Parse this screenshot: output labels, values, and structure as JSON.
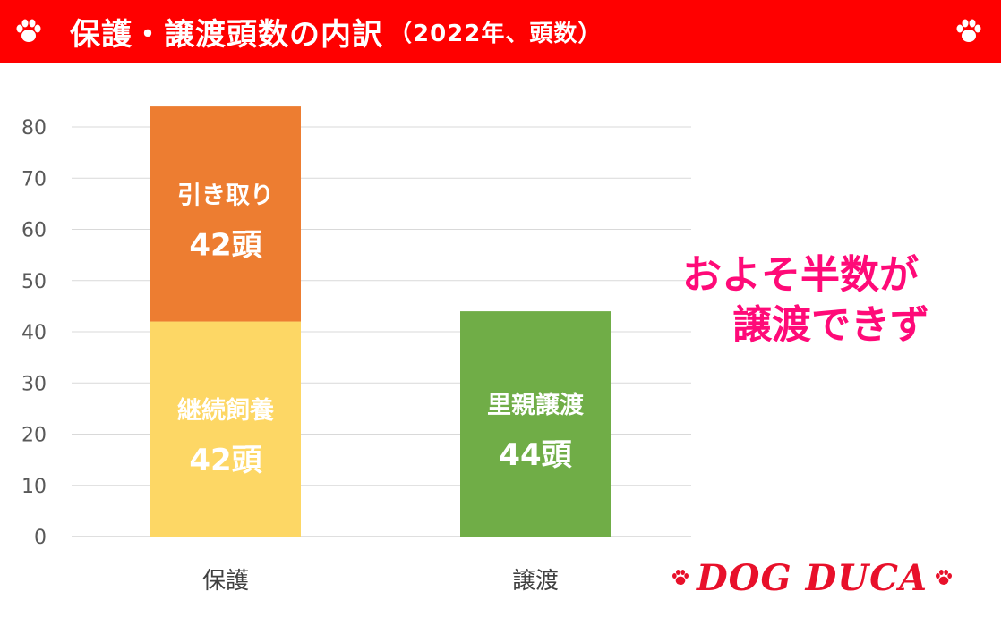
{
  "header": {
    "title": "保護・譲渡頭数の内訳",
    "subtitle": "（2022年、頭数）",
    "bg_color": "#ff0000",
    "icon_left": "paw-icon",
    "icon_right": "paw-icon"
  },
  "chart_data": {
    "type": "bar",
    "stacked": true,
    "categories": [
      "保護",
      "譲渡"
    ],
    "ylim": [
      0,
      80
    ],
    "yticks": [
      0,
      10,
      20,
      30,
      40,
      50,
      60,
      70,
      80
    ],
    "grid": true,
    "legend": "none",
    "segments": [
      {
        "category": "保護",
        "value": 42,
        "color": "#fdd765",
        "label": "継続飼養",
        "value_label": "42頭"
      },
      {
        "category": "保護",
        "value": 42,
        "color": "#ed7d31",
        "label": "引き取り",
        "value_label": "42頭"
      },
      {
        "category": "譲渡",
        "value": 44,
        "color": "#70ad47",
        "label": "里親譲渡",
        "value_label": "44頭"
      }
    ]
  },
  "annotation": {
    "line1": "およそ半数が",
    "line2": "譲渡できず",
    "color": "#ff0a78"
  },
  "logo": {
    "text": "DOG DUCA",
    "color": "#e8102a",
    "icon": "paw-icon"
  }
}
